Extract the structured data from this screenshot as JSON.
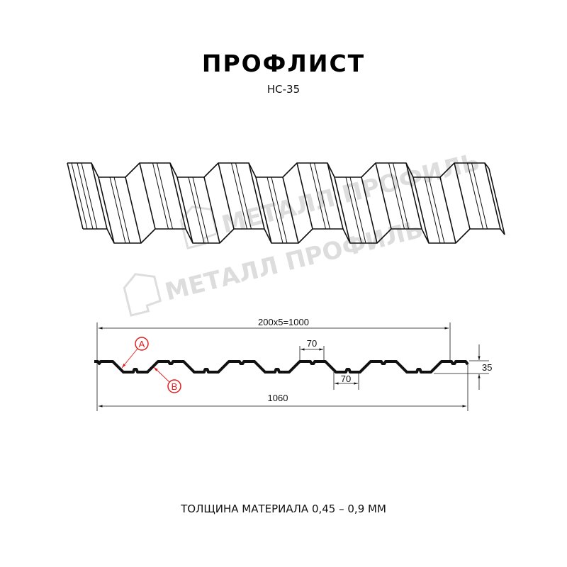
{
  "header": {
    "title": "ПРОФЛИСТ",
    "model": "НС-35"
  },
  "watermark": {
    "logo_text": "МЕТАЛЛ ПРОФИЛЬ"
  },
  "drawing": {
    "total_width_label": "1060",
    "useful_width_label": "200x5=1000",
    "top_flange_label": "70",
    "bottom_flange_label": "70",
    "height_label": "35",
    "callout_a": "A",
    "callout_b": "B",
    "callout_color": "#e02020"
  },
  "footer": {
    "thickness": "ТОЛЩИНА МАТЕРИАЛА 0,45 – 0,9 ММ"
  }
}
